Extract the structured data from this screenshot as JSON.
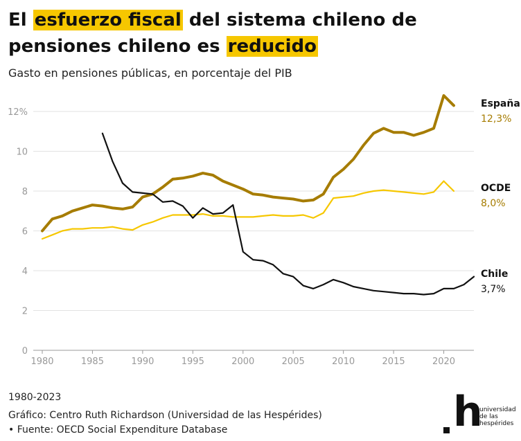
{
  "header": {
    "title_parts": {
      "p1": "El ",
      "h1": "esfuerzo fiscal",
      "p2": " del sistema chileno de pensiones ",
      "p3": "chileno es ",
      "h2": "reducido"
    },
    "subtitle": "Gasto en pensiones públicas, en porcentaje del PIB"
  },
  "chart_data": {
    "type": "line",
    "title": "El esfuerzo fiscal del sistema chileno de pensiones chileno es reducido",
    "subtitle": "Gasto en pensiones públicas, en porcentaje del PIB",
    "xlabel": "",
    "ylabel": "",
    "xlim": [
      1980,
      2023
    ],
    "ylim": [
      0,
      12
    ],
    "x_ticks": [
      1980,
      1985,
      1990,
      1995,
      2000,
      2005,
      2010,
      2015,
      2020
    ],
    "y_ticks": [
      0,
      2,
      4,
      6,
      8,
      10,
      12
    ],
    "y_tick_labels": [
      "0",
      "2",
      "4",
      "6",
      "8",
      "10",
      "12%"
    ],
    "series": [
      {
        "name": "España",
        "end_label": "12,3%",
        "color": "#a67c00",
        "x": [
          1980,
          1981,
          1982,
          1983,
          1984,
          1985,
          1986,
          1987,
          1988,
          1989,
          1990,
          1991,
          1992,
          1993,
          1994,
          1995,
          1996,
          1997,
          1998,
          1999,
          2000,
          2001,
          2002,
          2003,
          2004,
          2005,
          2006,
          2007,
          2008,
          2009,
          2010,
          2011,
          2012,
          2013,
          2014,
          2015,
          2016,
          2017,
          2018,
          2019,
          2020,
          2021
        ],
        "values": [
          6.0,
          6.6,
          6.75,
          7.0,
          7.15,
          7.3,
          7.25,
          7.15,
          7.1,
          7.2,
          7.7,
          7.85,
          8.2,
          8.6,
          8.65,
          8.75,
          8.9,
          8.8,
          8.5,
          8.3,
          8.1,
          7.85,
          7.8,
          7.7,
          7.65,
          7.6,
          7.5,
          7.55,
          7.85,
          8.7,
          9.1,
          9.6,
          10.3,
          10.9,
          11.15,
          10.95,
          10.95,
          10.8,
          10.95,
          11.15,
          12.8,
          12.3
        ]
      },
      {
        "name": "OCDE",
        "end_label": "8,0%",
        "color": "#f6c700",
        "x": [
          1980,
          1981,
          1982,
          1983,
          1984,
          1985,
          1986,
          1987,
          1988,
          1989,
          1990,
          1991,
          1992,
          1993,
          1994,
          1995,
          1996,
          1997,
          1998,
          1999,
          2000,
          2001,
          2002,
          2003,
          2004,
          2005,
          2006,
          2007,
          2008,
          2009,
          2010,
          2011,
          2012,
          2013,
          2014,
          2015,
          2016,
          2017,
          2018,
          2019,
          2020,
          2021
        ],
        "values": [
          5.6,
          5.8,
          6.0,
          6.1,
          6.1,
          6.15,
          6.15,
          6.2,
          6.1,
          6.05,
          6.3,
          6.45,
          6.65,
          6.8,
          6.8,
          6.8,
          6.85,
          6.75,
          6.75,
          6.7,
          6.7,
          6.7,
          6.75,
          6.8,
          6.75,
          6.75,
          6.8,
          6.65,
          6.9,
          7.65,
          7.7,
          7.75,
          7.9,
          8.0,
          8.05,
          8.0,
          7.95,
          7.9,
          7.85,
          7.95,
          8.5,
          8.0
        ]
      },
      {
        "name": "Chile",
        "end_label": "3,7%",
        "color": "#111111",
        "x": [
          1986,
          1987,
          1988,
          1989,
          1990,
          1991,
          1992,
          1993,
          1994,
          1995,
          1996,
          1997,
          1998,
          1999,
          2000,
          2001,
          2002,
          2003,
          2004,
          2005,
          2006,
          2007,
          2008,
          2009,
          2010,
          2011,
          2012,
          2013,
          2014,
          2015,
          2016,
          2017,
          2018,
          2019,
          2020,
          2021,
          2022,
          2023
        ],
        "values": [
          10.9,
          9.5,
          8.4,
          7.95,
          7.9,
          7.85,
          7.45,
          7.5,
          7.25,
          6.65,
          7.15,
          6.85,
          6.9,
          7.3,
          4.95,
          4.55,
          4.5,
          4.3,
          3.85,
          3.7,
          3.25,
          3.1,
          3.3,
          3.55,
          3.4,
          3.2,
          3.1,
          3.0,
          2.95,
          2.9,
          2.85,
          2.85,
          2.8,
          2.85,
          3.1,
          3.1,
          3.3,
          3.7
        ]
      }
    ],
    "grid": true,
    "legend": "end-of-line labels"
  },
  "footer": {
    "range": "1980-2023",
    "credit": "Gráfico: Centro Ruth Richardson (Universidad de las Hespérides)",
    "source": "• Fuente: OECD Social Expenditure Database"
  },
  "logo": {
    "mark": "h",
    "line1": "universidad",
    "line2": "de las",
    "line3": "hespérides"
  }
}
